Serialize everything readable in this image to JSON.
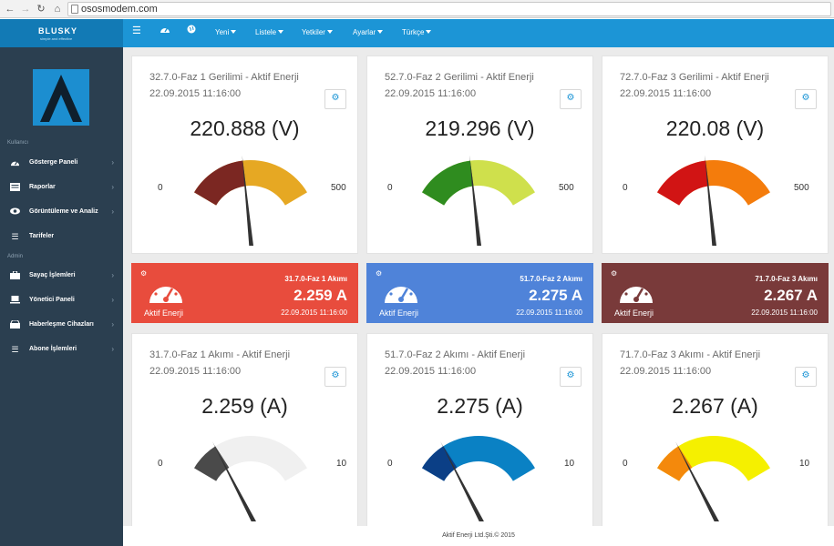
{
  "browser": {
    "url": "ososmodem.com"
  },
  "topbar": {
    "brand": "BLUSKY",
    "tagline": "simple and effective",
    "menus": [
      "Yeni",
      "Listele",
      "Yetkiler",
      "Ayarlar",
      "Türkçe"
    ]
  },
  "sidebar": {
    "section1": "Kullanıcı",
    "section2": "Admin",
    "items": [
      {
        "label": "Gösterge Paneli",
        "icon": "dashboard-icon"
      },
      {
        "label": "Raporlar",
        "icon": "reports-icon"
      },
      {
        "label": "Görüntüleme ve Analiz",
        "icon": "eye-icon"
      },
      {
        "label": "Tarifeler",
        "icon": "list-icon"
      },
      {
        "label": "Sayaç İşlemleri",
        "icon": "briefcase-icon"
      },
      {
        "label": "Yönetici Paneli",
        "icon": "laptop-icon"
      },
      {
        "label": "Haberleşme Cihazları",
        "icon": "drive-icon"
      },
      {
        "label": "Abone İşlemleri",
        "icon": "list-icon"
      }
    ]
  },
  "gauges": [
    {
      "title": "32.7.0-Faz 1 Gerilimi - Aktif Enerji",
      "date": "22.09.2015 11:16:00",
      "value": "220.888 (V)",
      "num": 220.888,
      "min": "0",
      "max": "500",
      "fill": "#e6a823",
      "bg": "#7b2722"
    },
    {
      "title": "52.7.0-Faz 2 Gerilimi - Aktif Enerji",
      "date": "22.09.2015 11:16:00",
      "value": "219.296 (V)",
      "num": 219.296,
      "min": "0",
      "max": "500",
      "fill": "#cfe04c",
      "bg": "#2f8c1f"
    },
    {
      "title": "72.7.0-Faz 3 Gerilimi - Aktif Enerji",
      "date": "22.09.2015 11:16:00",
      "value": "220.08 (V)",
      "num": 220.08,
      "min": "0",
      "max": "500",
      "fill": "#f47c0c",
      "bg": "#d11414"
    },
    {
      "title": "31.7.0-Faz 1 Akımı - Aktif Enerji",
      "date": "22.09.2015 11:16:00",
      "value": "2.259 (A)",
      "num": 2.259,
      "min": "0",
      "max": "10",
      "fill": "#f0f0f0",
      "bg": "#4a4a4a"
    },
    {
      "title": "51.7.0-Faz 2 Akımı - Aktif Enerji",
      "date": "22.09.2015 11:16:00",
      "value": "2.275 (A)",
      "num": 2.275,
      "min": "0",
      "max": "10",
      "fill": "#0a81c4",
      "bg": "#0b3f86"
    },
    {
      "title": "71.7.0-Faz 3 Akımı - Aktif Enerji",
      "date": "22.09.2015 11:16:00",
      "value": "2.267 (A)",
      "num": 2.267,
      "min": "0",
      "max": "10",
      "fill": "#f5f000",
      "bg": "#f4890c"
    }
  ],
  "tiles": [
    {
      "name": "31.7.0-Faz 1 Akımı",
      "value": "2.259 A",
      "date": "22.09.2015 11:16:00",
      "label": "Aktif Enerji",
      "color": "#e84c3d"
    },
    {
      "name": "51.7.0-Faz 2 Akımı",
      "value": "2.275 A",
      "date": "22.09.2015 11:16:00",
      "label": "Aktif Enerji",
      "color": "#4f83d9"
    },
    {
      "name": "71.7.0-Faz 3 Akımı",
      "value": "2.267 A",
      "date": "22.09.2015 11:16:00",
      "label": "Aktif Enerji",
      "color": "#793a3a"
    }
  ],
  "footer": {
    "text": "Aktif Enerji Ltd.Şti.© 2015"
  }
}
